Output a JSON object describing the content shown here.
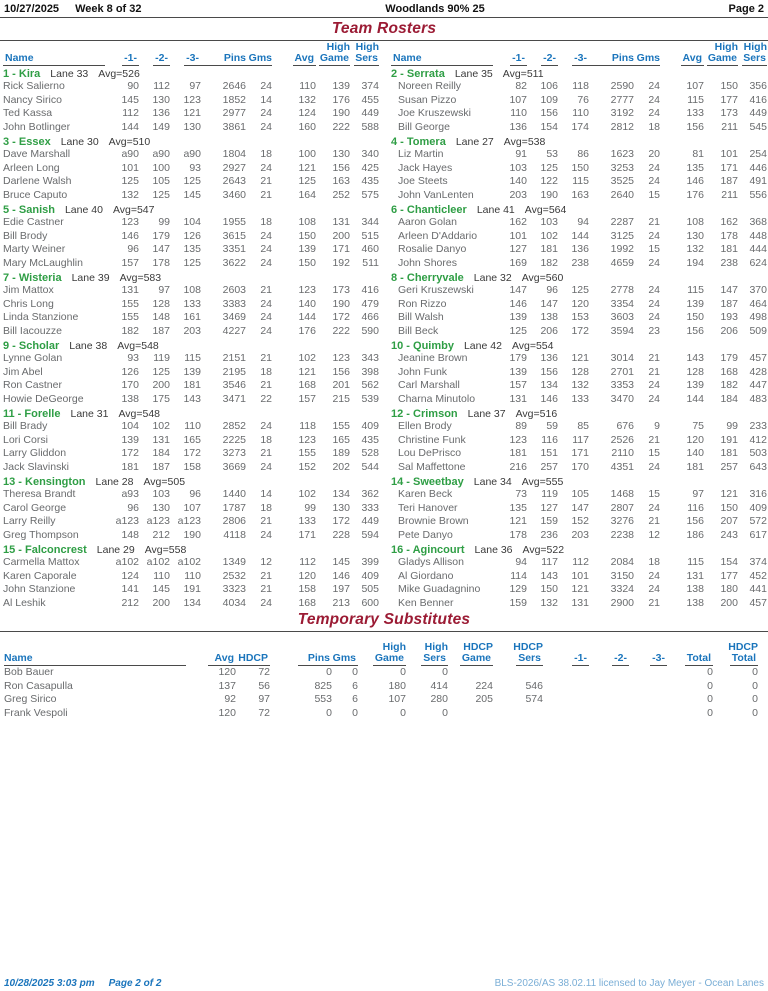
{
  "page_header": {
    "date": "10/27/2025",
    "week": "Week 8 of 32",
    "center": "Woodlands 90% 25",
    "page": "Page 2"
  },
  "title": "Team Rosters",
  "roster_columns": {
    "name": "Name",
    "g1": "-1-",
    "g2": "-2-",
    "g3": "-3-",
    "pins": "Pins",
    "gms": "Gms",
    "avg": "Avg",
    "high": "High",
    "game": "Game",
    "sers": "Sers"
  },
  "teams": [
    {
      "id": "1 - Kira",
      "lane": "Lane 33",
      "avg": "Avg=526",
      "players": [
        [
          "Rick Salierno",
          "90",
          "112",
          "97",
          "2646",
          "24",
          "110",
          "139",
          "374"
        ],
        [
          "Nancy Sirico",
          "145",
          "130",
          "123",
          "1852",
          "14",
          "132",
          "176",
          "455"
        ],
        [
          "Ted Kassa",
          "112",
          "136",
          "121",
          "2977",
          "24",
          "124",
          "190",
          "449"
        ],
        [
          "John Botlinger",
          "144",
          "149",
          "130",
          "3861",
          "24",
          "160",
          "222",
          "588"
        ]
      ]
    },
    {
      "id": "2 - Serrata",
      "lane": "Lane 35",
      "avg": "Avg=511",
      "players": [
        [
          "Noreen Reilly",
          "82",
          "106",
          "118",
          "2590",
          "24",
          "107",
          "150",
          "356"
        ],
        [
          "Susan Pizzo",
          "107",
          "109",
          "76",
          "2777",
          "24",
          "115",
          "177",
          "416"
        ],
        [
          "Joe Kruszewski",
          "110",
          "156",
          "110",
          "3192",
          "24",
          "133",
          "173",
          "449"
        ],
        [
          "Bill George",
          "136",
          "154",
          "174",
          "2812",
          "18",
          "156",
          "211",
          "545"
        ]
      ]
    },
    {
      "id": "3 - Essex",
      "lane": "Lane 30",
      "avg": "Avg=510",
      "players": [
        [
          "Dave Marshall",
          "a90",
          "a90",
          "a90",
          "1804",
          "18",
          "100",
          "130",
          "340"
        ],
        [
          "Arleen Long",
          "101",
          "100",
          "93",
          "2927",
          "24",
          "121",
          "156",
          "425"
        ],
        [
          "Darlene Walsh",
          "125",
          "105",
          "125",
          "2643",
          "21",
          "125",
          "163",
          "435"
        ],
        [
          "Bruce Caputo",
          "132",
          "125",
          "145",
          "3460",
          "21",
          "164",
          "252",
          "575"
        ]
      ]
    },
    {
      "id": "4 - Tomera",
      "lane": "Lane 27",
      "avg": "Avg=538",
      "players": [
        [
          "Liz Martin",
          "91",
          "53",
          "86",
          "1623",
          "20",
          "81",
          "101",
          "254"
        ],
        [
          "Jack Hayes",
          "103",
          "125",
          "150",
          "3253",
          "24",
          "135",
          "171",
          "446"
        ],
        [
          "Joe Steets",
          "140",
          "122",
          "115",
          "3525",
          "24",
          "146",
          "187",
          "491"
        ],
        [
          "John VanLenten",
          "203",
          "190",
          "163",
          "2640",
          "15",
          "176",
          "211",
          "556"
        ]
      ]
    },
    {
      "id": "5 - Sanish",
      "lane": "Lane 40",
      "avg": "Avg=547",
      "players": [
        [
          "Edie Castner",
          "123",
          "99",
          "104",
          "1955",
          "18",
          "108",
          "131",
          "344"
        ],
        [
          "Bill Brody",
          "146",
          "179",
          "126",
          "3615",
          "24",
          "150",
          "200",
          "515"
        ],
        [
          "Marty Weiner",
          "96",
          "147",
          "135",
          "3351",
          "24",
          "139",
          "171",
          "460"
        ],
        [
          "Mary McLaughlin",
          "157",
          "178",
          "125",
          "3622",
          "24",
          "150",
          "192",
          "511"
        ]
      ]
    },
    {
      "id": "6 - Chanticleer",
      "lane": "Lane 41",
      "avg": "Avg=564",
      "players": [
        [
          "Aaron Golan",
          "162",
          "103",
          "94",
          "2287",
          "21",
          "108",
          "162",
          "368"
        ],
        [
          "Arleen D'Addario",
          "101",
          "102",
          "144",
          "3125",
          "24",
          "130",
          "178",
          "448"
        ],
        [
          "Rosalie Danyo",
          "127",
          "181",
          "136",
          "1992",
          "15",
          "132",
          "181",
          "444"
        ],
        [
          "John Shores",
          "169",
          "182",
          "238",
          "4659",
          "24",
          "194",
          "238",
          "624"
        ]
      ]
    },
    {
      "id": "7 - Wisteria",
      "lane": "Lane 39",
      "avg": "Avg=583",
      "players": [
        [
          "Jim Mattox",
          "131",
          "97",
          "108",
          "2603",
          "21",
          "123",
          "173",
          "416"
        ],
        [
          "Chris Long",
          "155",
          "128",
          "133",
          "3383",
          "24",
          "140",
          "190",
          "479"
        ],
        [
          "Linda Stanzione",
          "155",
          "148",
          "161",
          "3469",
          "24",
          "144",
          "172",
          "466"
        ],
        [
          "Bill Iacouzze",
          "182",
          "187",
          "203",
          "4227",
          "24",
          "176",
          "222",
          "590"
        ]
      ]
    },
    {
      "id": "8 - Cherryvale",
      "lane": "Lane 32",
      "avg": "Avg=560",
      "players": [
        [
          "Geri Kruszewski",
          "147",
          "96",
          "125",
          "2778",
          "24",
          "115",
          "147",
          "370"
        ],
        [
          "Ron Rizzo",
          "146",
          "147",
          "120",
          "3354",
          "24",
          "139",
          "187",
          "464"
        ],
        [
          "Bill Walsh",
          "139",
          "138",
          "153",
          "3603",
          "24",
          "150",
          "193",
          "498"
        ],
        [
          "Bill Beck",
          "125",
          "206",
          "172",
          "3594",
          "23",
          "156",
          "206",
          "509"
        ]
      ]
    },
    {
      "id": "9 - Scholar",
      "lane": "Lane 38",
      "avg": "Avg=548",
      "players": [
        [
          "Lynne Golan",
          "93",
          "119",
          "115",
          "2151",
          "21",
          "102",
          "123",
          "343"
        ],
        [
          "Jim Abel",
          "126",
          "125",
          "139",
          "2195",
          "18",
          "121",
          "156",
          "398"
        ],
        [
          "Ron Castner",
          "170",
          "200",
          "181",
          "3546",
          "21",
          "168",
          "201",
          "562"
        ],
        [
          "Howie DeGeorge",
          "138",
          "175",
          "143",
          "3471",
          "22",
          "157",
          "215",
          "539"
        ]
      ]
    },
    {
      "id": "10 - Quimby",
      "lane": "Lane 42",
      "avg": "Avg=554",
      "players": [
        [
          "Jeanine Brown",
          "179",
          "136",
          "121",
          "3014",
          "21",
          "143",
          "179",
          "457"
        ],
        [
          "John Funk",
          "139",
          "156",
          "128",
          "2701",
          "21",
          "128",
          "168",
          "428"
        ],
        [
          "Carl Marshall",
          "157",
          "134",
          "132",
          "3353",
          "24",
          "139",
          "182",
          "447"
        ],
        [
          "Charna Minutolo",
          "131",
          "146",
          "133",
          "3470",
          "24",
          "144",
          "184",
          "483"
        ]
      ]
    },
    {
      "id": "11 - Forelle",
      "lane": "Lane 31",
      "avg": "Avg=548",
      "players": [
        [
          "Bill Brady",
          "104",
          "102",
          "110",
          "2852",
          "24",
          "118",
          "155",
          "409"
        ],
        [
          "Lori Corsi",
          "139",
          "131",
          "165",
          "2225",
          "18",
          "123",
          "165",
          "435"
        ],
        [
          "Larry Gliddon",
          "172",
          "184",
          "172",
          "3273",
          "21",
          "155",
          "189",
          "528"
        ],
        [
          "Jack Slavinski",
          "181",
          "187",
          "158",
          "3669",
          "24",
          "152",
          "202",
          "544"
        ]
      ]
    },
    {
      "id": "12 - Crimson",
      "lane": "Lane 37",
      "avg": "Avg=516",
      "players": [
        [
          "Ellen Brody",
          "89",
          "59",
          "85",
          "676",
          "9",
          "75",
          "99",
          "233"
        ],
        [
          "Christine Funk",
          "123",
          "116",
          "117",
          "2526",
          "21",
          "120",
          "191",
          "412"
        ],
        [
          "Lou DePrisco",
          "181",
          "151",
          "171",
          "2110",
          "15",
          "140",
          "181",
          "503"
        ],
        [
          "Sal Maffettone",
          "216",
          "257",
          "170",
          "4351",
          "24",
          "181",
          "257",
          "643"
        ]
      ]
    },
    {
      "id": "13 - Kensington",
      "lane": "Lane 28",
      "avg": "Avg=505",
      "players": [
        [
          "Theresa Brandt",
          "a93",
          "103",
          "96",
          "1440",
          "14",
          "102",
          "134",
          "362"
        ],
        [
          "Carol George",
          "96",
          "130",
          "107",
          "1787",
          "18",
          "99",
          "130",
          "333"
        ],
        [
          "Larry Reilly",
          "a123",
          "a123",
          "a123",
          "2806",
          "21",
          "133",
          "172",
          "449"
        ],
        [
          "Greg Thompson",
          "148",
          "212",
          "190",
          "4118",
          "24",
          "171",
          "228",
          "594"
        ]
      ]
    },
    {
      "id": "14 - Sweetbay",
      "lane": "Lane 34",
      "avg": "Avg=555",
      "players": [
        [
          "Karen Beck",
          "73",
          "119",
          "105",
          "1468",
          "15",
          "97",
          "121",
          "316"
        ],
        [
          "Teri Hanover",
          "135",
          "127",
          "147",
          "2807",
          "24",
          "116",
          "150",
          "409"
        ],
        [
          "Brownie Brown",
          "121",
          "159",
          "152",
          "3276",
          "21",
          "156",
          "207",
          "572"
        ],
        [
          "Pete Danyo",
          "178",
          "236",
          "203",
          "2238",
          "12",
          "186",
          "243",
          "617"
        ]
      ]
    },
    {
      "id": "15 - Falconcrest",
      "lane": "Lane 29",
      "avg": "Avg=558",
      "players": [
        [
          "Carmella Mattox",
          "a102",
          "a102",
          "a102",
          "1349",
          "12",
          "112",
          "145",
          "399"
        ],
        [
          "Karen Caporale",
          "124",
          "110",
          "110",
          "2532",
          "21",
          "120",
          "146",
          "409"
        ],
        [
          "John Stanzione",
          "141",
          "145",
          "191",
          "3323",
          "21",
          "158",
          "197",
          "505"
        ],
        [
          "Al Leshik",
          "212",
          "200",
          "134",
          "4034",
          "24",
          "168",
          "213",
          "600"
        ]
      ]
    },
    {
      "id": "16 - Agincourt",
      "lane": "Lane 36",
      "avg": "Avg=522",
      "players": [
        [
          "Gladys Allison",
          "94",
          "117",
          "112",
          "2084",
          "18",
          "115",
          "154",
          "374"
        ],
        [
          "Al Giordano",
          "114",
          "143",
          "101",
          "3150",
          "24",
          "131",
          "177",
          "452"
        ],
        [
          "Mike Guadagnino",
          "129",
          "150",
          "121",
          "3324",
          "24",
          "138",
          "180",
          "441"
        ],
        [
          "Ken Benner",
          "159",
          "132",
          "131",
          "2900",
          "21",
          "138",
          "200",
          "457"
        ]
      ]
    }
  ],
  "subs": {
    "title": "Temporary Substitutes",
    "columns": {
      "name": "Name",
      "avg": "Avg",
      "hdcp": "HDCP",
      "pins": "Pins",
      "gms": "Gms",
      "high": "High",
      "game": "Game",
      "sers": "Sers",
      "g1": "-1-",
      "g2": "-2-",
      "g3": "-3-",
      "total": "Total"
    },
    "rows": [
      [
        "Bob Bauer",
        "120",
        "72",
        "0",
        "0",
        "0",
        "0",
        "",
        "",
        "",
        "",
        "",
        "0",
        "0"
      ],
      [
        "Ron Casapulla",
        "137",
        "56",
        "825",
        "6",
        "180",
        "414",
        "224",
        "546",
        "",
        "",
        "",
        "0",
        "0"
      ],
      [
        "Greg Sirico",
        "92",
        "97",
        "553",
        "6",
        "107",
        "280",
        "205",
        "574",
        "",
        "",
        "",
        "0",
        "0"
      ],
      [
        "Frank Vespoli",
        "120",
        "72",
        "0",
        "0",
        "0",
        "0",
        "",
        "",
        "",
        "",
        "",
        "0",
        "0"
      ]
    ]
  },
  "footer": {
    "datetime": "10/28/2025  3:03 pm",
    "page": "Page 2 of 2",
    "license": "BLS-2026/AS 38.02.11 licensed to Jay Meyer - Ocean Lanes"
  },
  "colors": {
    "header_blue": "#1b75bc",
    "title_maroon": "#9b1b34",
    "team_green": "#2f9e45",
    "data_gray": "#696b6d",
    "footer_blue": "#1b75bc",
    "license_blue": "#7aaed6"
  }
}
